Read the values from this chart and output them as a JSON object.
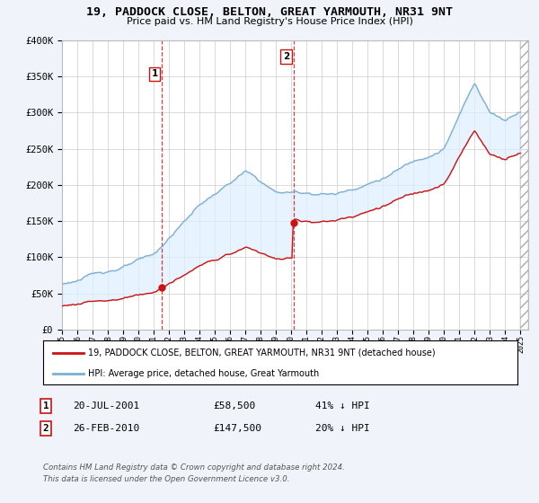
{
  "title": "19, PADDOCK CLOSE, BELTON, GREAT YARMOUTH, NR31 9NT",
  "subtitle": "Price paid vs. HM Land Registry's House Price Index (HPI)",
  "ylabel_ticks": [
    "£0",
    "£50K",
    "£100K",
    "£150K",
    "£200K",
    "£250K",
    "£300K",
    "£350K",
    "£400K"
  ],
  "ytick_values": [
    0,
    50000,
    100000,
    150000,
    200000,
    250000,
    300000,
    350000,
    400000
  ],
  "ylim": [
    0,
    400000
  ],
  "xlim_start": 1995.0,
  "xlim_end": 2025.5,
  "hpi_color": "#7bafd4",
  "price_color": "#cc1111",
  "fill_color": "#ddeeff",
  "marker1_date_num": 2001.55,
  "marker1_price": 58500,
  "marker2_date_num": 2010.15,
  "marker2_price": 147500,
  "legend_label1": "19, PADDOCK CLOSE, BELTON, GREAT YARMOUTH, NR31 9NT (detached house)",
  "legend_label2": "HPI: Average price, detached house, Great Yarmouth",
  "annotation1_label": "1",
  "annotation1_date": "20-JUL-2001",
  "annotation1_price": "£58,500",
  "annotation1_hpi": "41% ↓ HPI",
  "annotation2_label": "2",
  "annotation2_date": "26-FEB-2010",
  "annotation2_price": "£147,500",
  "annotation2_hpi": "20% ↓ HPI",
  "footer1": "Contains HM Land Registry data © Crown copyright and database right 2024.",
  "footer2": "This data is licensed under the Open Government Licence v3.0.",
  "background_color": "#f0f4fa",
  "plot_bg_color": "#ffffff"
}
